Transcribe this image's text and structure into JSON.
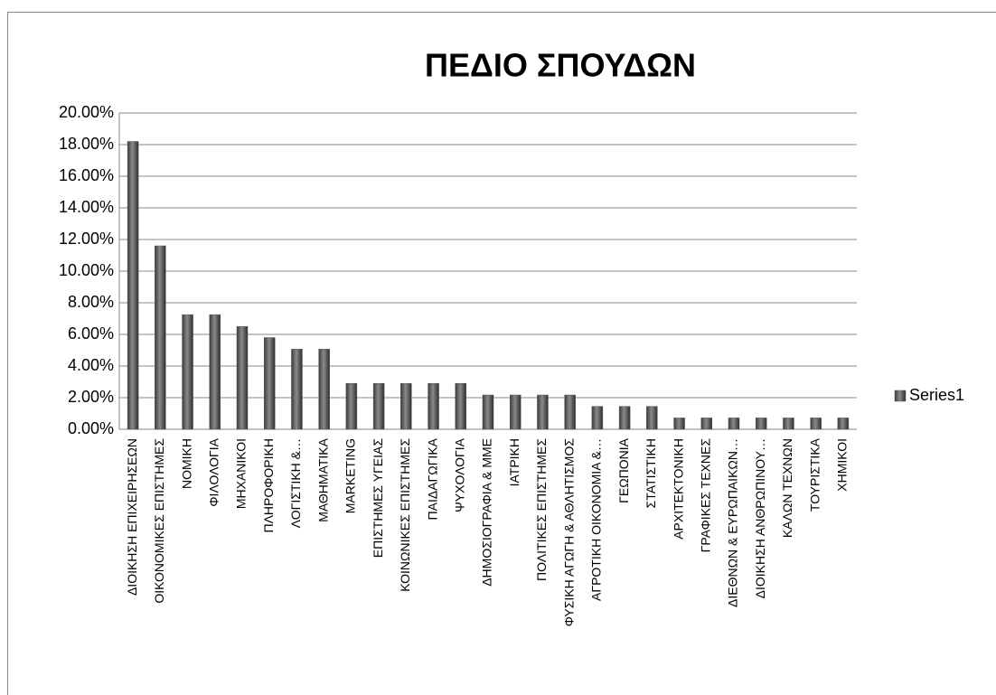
{
  "chart_data": {
    "type": "bar",
    "title": "ΠΕΔΙΟ ΣΠΟΥΔΩΝ",
    "categories": [
      "ΔΙΟΙΚΗΣΗ ΕΠΙΧΕΙΡΗΣΕΩΝ",
      "ΟΙΚΟΝΟΜΙΚΕΣ ΕΠΙΣΤΗΜΕΣ",
      "ΝΟΜΙΚΗ",
      "ΦΙΛΟΛΟΓΙΑ",
      "ΜΗΧΑΝΙΚΟΙ",
      "ΠΛΗΡΟΦΟΡΙΚΗ",
      "ΛΟΓΙΣΤΙΚΗ &…",
      "ΜΑΘΗΜΑΤΙΚΑ",
      "MARKETING",
      "ΕΠΙΣΤΗΜΕΣ ΥΓΕΙΑΣ",
      "ΚΟΙΝΩΝΙΚΕΣ ΕΠΙΣΤΗΜΕΣ",
      "ΠΑΙΔΑΓΩΓΙΚΑ",
      "ΨΥΧΟΛΟΓΙΑ",
      "ΔΗΜΟΣΙΟΓΡΑΦΙΑ & ΜΜΕ",
      "ΙΑΤΡΙΚΗ",
      "ΠΟΛΙΤΙΚΕΣ ΕΠΙΣΤΗΜΕΣ",
      "ΦΥΣΙΚΗ ΑΓΩΓΗ & ΑΘΛΗΤΙΣΜΟΣ",
      "ΑΓΡΟΤΙΚΗ ΟΙΚΟΝΟΜΙΑ &…",
      "ΓΕΩΠΟΝΙΑ",
      "ΣΤΑΤΙΣΤΙΚΗ",
      "ΑΡΧΙΤΕΚΤΟΝΙΚΗ",
      "ΓΡΑΦΙΚΕΣ ΤΕΧΝΕΣ",
      "ΔΙΕΘΝΩΝ & ΕΥΡΩΠΑΙΚΩΝ…",
      "ΔΙΟΙΚΗΣΗ ΑΝΘΡΩΠΙΝΟΥ…",
      "ΚΑΛΩΝ ΤΕΧΝΩΝ",
      "ΤΟΥΡΙΣΤΙΚΑ",
      "ΧΗΜΙΚΟΙ"
    ],
    "series": [
      {
        "name": "Series1",
        "color": "#595959",
        "values": [
          18.2,
          11.6,
          7.25,
          7.25,
          6.5,
          5.8,
          5.07,
          5.07,
          2.9,
          2.9,
          2.9,
          2.9,
          2.9,
          2.17,
          2.17,
          2.17,
          2.17,
          1.45,
          1.45,
          1.45,
          0.72,
          0.72,
          0.72,
          0.72,
          0.72,
          0.72,
          0.72
        ]
      }
    ],
    "ylim": [
      0,
      20
    ],
    "yticks": [
      {
        "value": 0,
        "label": "0.00%"
      },
      {
        "value": 2,
        "label": "2.00%"
      },
      {
        "value": 4,
        "label": "4.00%"
      },
      {
        "value": 6,
        "label": "6.00%"
      },
      {
        "value": 8,
        "label": "8.00%"
      },
      {
        "value": 10,
        "label": "10.00%"
      },
      {
        "value": 12,
        "label": "12.00%"
      },
      {
        "value": 14,
        "label": "14.00%"
      },
      {
        "value": 16,
        "label": "16.00%"
      },
      {
        "value": 18,
        "label": "18.00%"
      },
      {
        "value": 20,
        "label": "20.00%"
      }
    ],
    "grid": true,
    "legend": "right"
  }
}
